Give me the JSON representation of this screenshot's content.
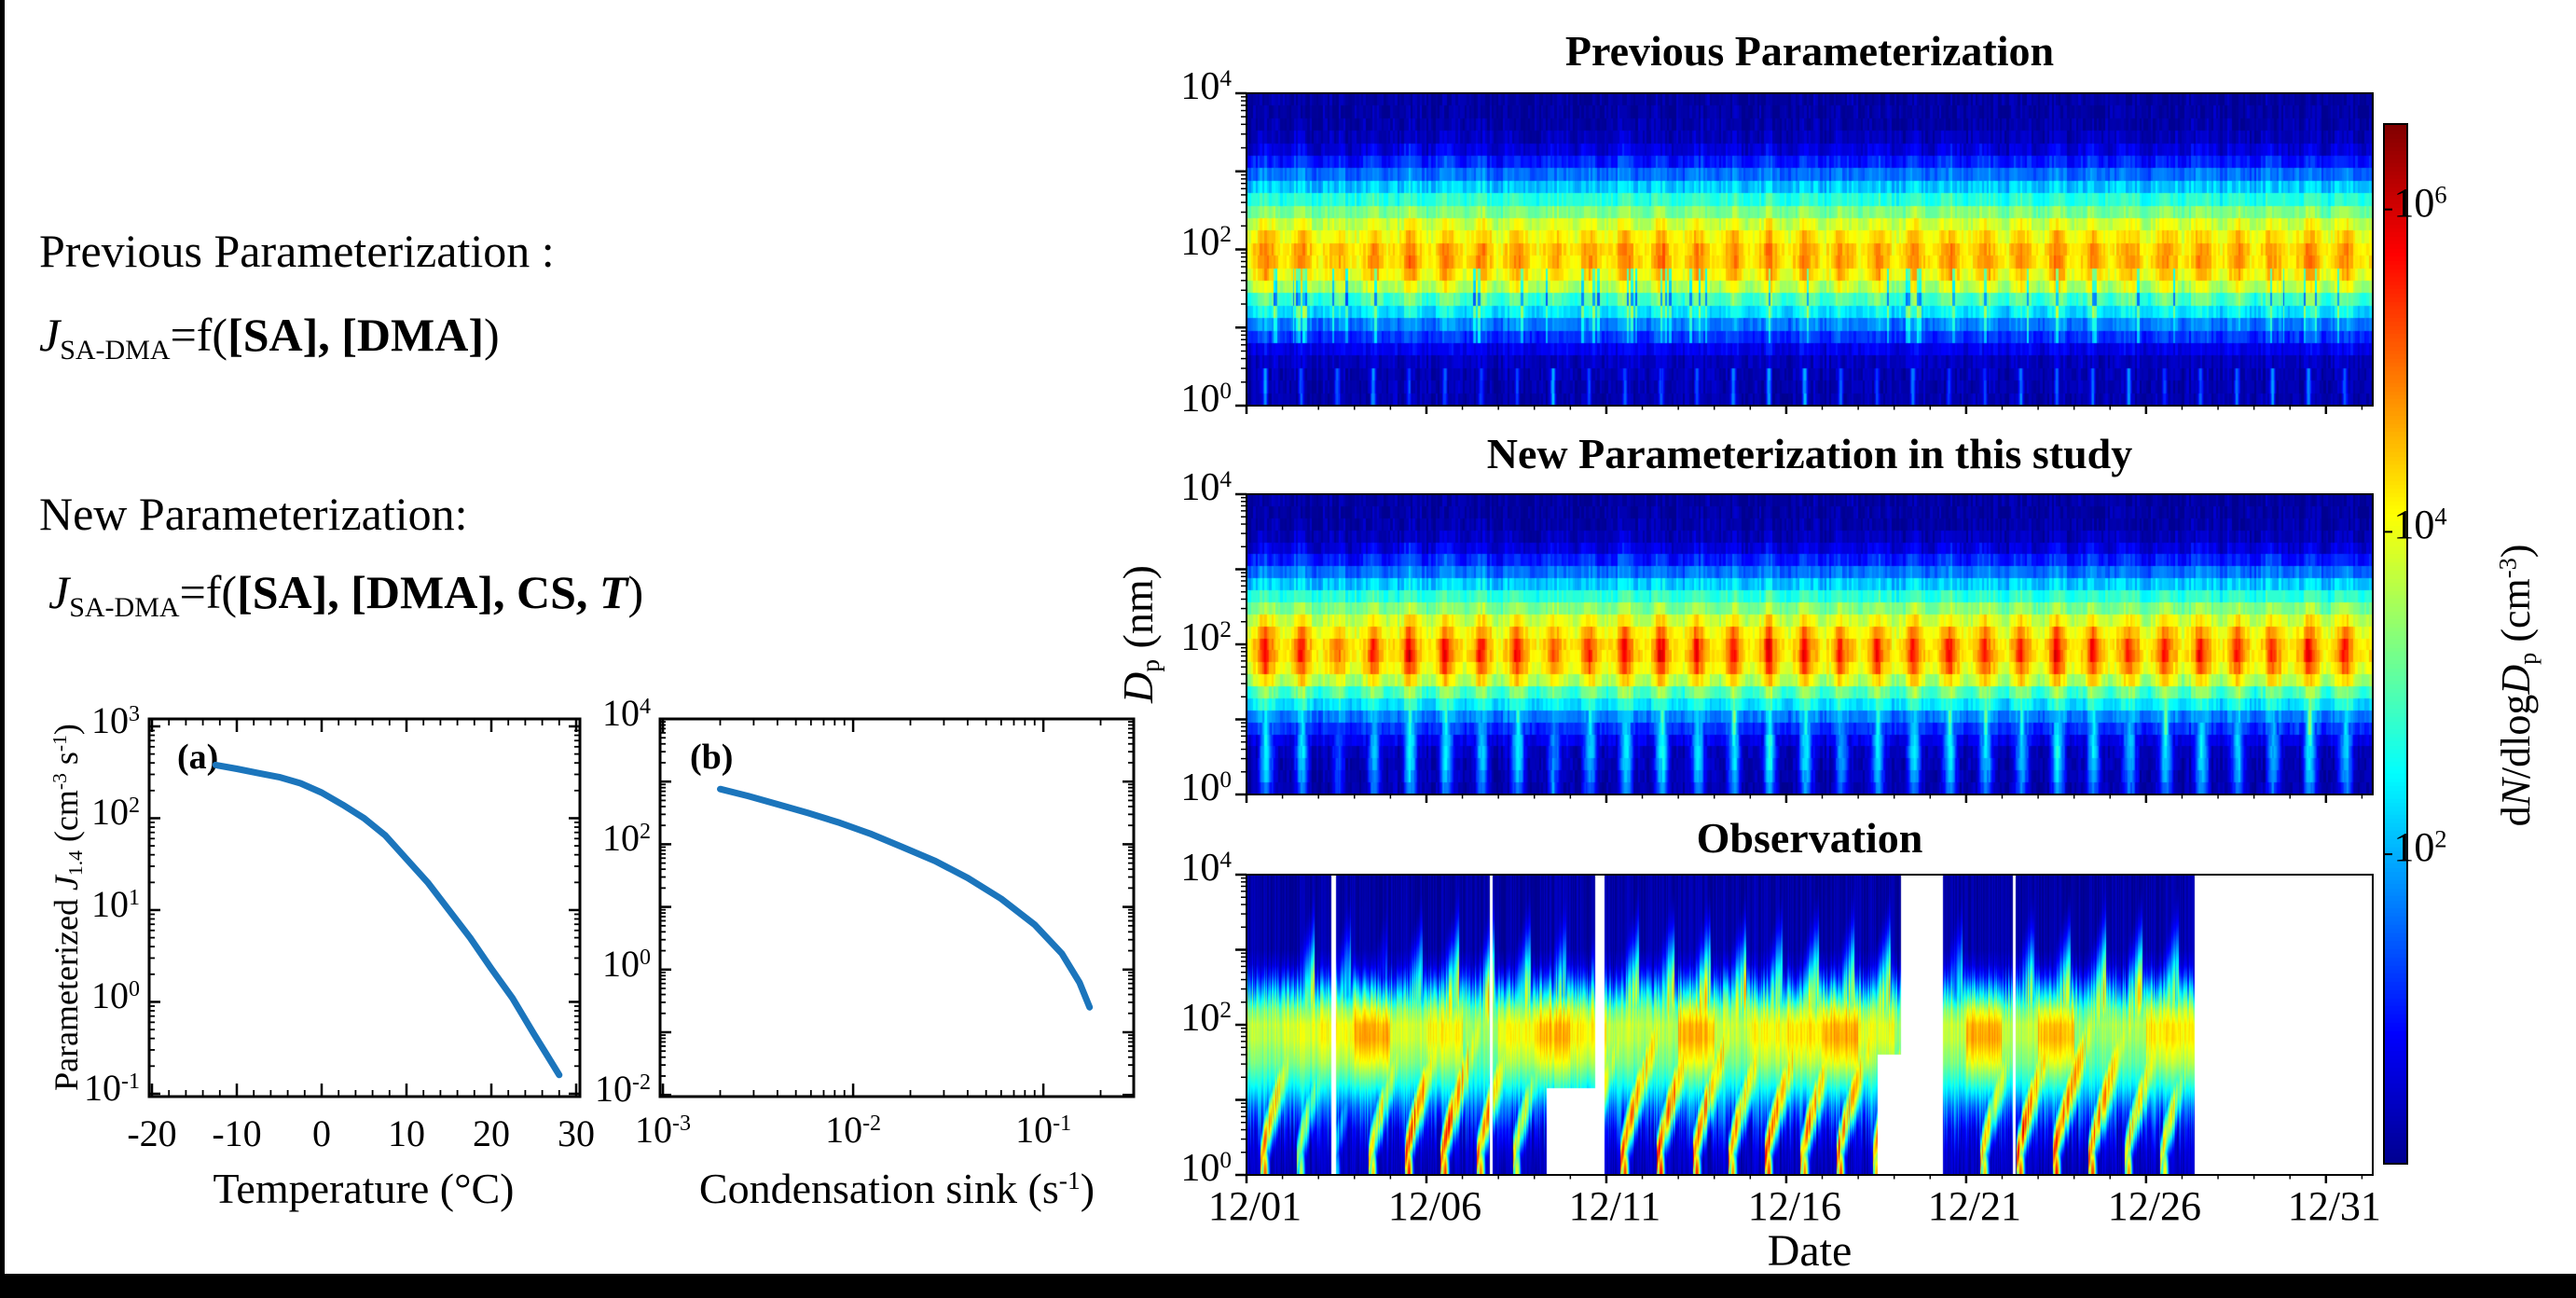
{
  "page": {
    "background": "#ffffff",
    "frame_color": "#000000"
  },
  "left_panel": {
    "previous": {
      "heading": "Previous Parameterization :",
      "equation": {
        "var": "J",
        "var_sub": "SA-DMA",
        "mid": "=f(",
        "bold_args": "[SA], [DMA]",
        "close": ")"
      }
    },
    "new": {
      "heading": "New Parameterization:",
      "equation": {
        "var": "J",
        "var_sub": "SA-DMA",
        "mid": "=f(",
        "bold_args": "[SA], [DMA], CS, ",
        "bold_italic_arg": "T",
        "close": ")"
      }
    }
  },
  "chart_data": {
    "line_plots": [
      {
        "id": "a",
        "panel_label": "(a)",
        "type": "line",
        "x_scale": "linear",
        "y_scale": "log",
        "xlabel": "Temperature (°C)",
        "ylabel_parts": {
          "pre": "Parameterized ",
          "italic": "J",
          "sub": "1.4",
          "unit_pre": " (cm",
          "sup1": "-3",
          "unit_mid": " s",
          "sup2": "-1",
          "unit_post": ")"
        },
        "xlim": [
          -20.33,
          30.44
        ],
        "ylim_log": [
          -1.031,
          3.081
        ],
        "x_major_ticks": [
          -20,
          -10,
          0,
          10,
          20,
          30
        ],
        "x_minor_step": 2,
        "y_tick_exponents_labeled": [
          -1,
          0,
          1,
          2,
          3
        ],
        "line_color": "#1b75bc",
        "x": [
          -12.5,
          -10,
          -7.5,
          -5,
          -2.5,
          0,
          2.5,
          5,
          7.5,
          10,
          12.5,
          15,
          17.5,
          20,
          22.5,
          25,
          26.5,
          28
        ],
        "y": [
          380,
          345,
          310,
          280,
          240,
          190,
          140,
          100,
          65,
          36,
          20,
          10,
          5,
          2.3,
          1.1,
          0.45,
          0.27,
          0.16
        ]
      },
      {
        "id": "b",
        "panel_label": "(b)",
        "type": "line",
        "x_scale": "log",
        "y_scale": "log",
        "xlabel_parts": {
          "pre": "Condensation sink (s",
          "sup": "-1",
          "post": ")"
        },
        "xlim_log": [
          -3.015,
          -0.525
        ],
        "ylim_log": [
          -2.027,
          4.0
        ],
        "x_tick_exponents_labeled": [
          -3,
          -2,
          -1
        ],
        "y_tick_exponents_labeled": [
          -2,
          0,
          2,
          4
        ],
        "line_color": "#1b75bc",
        "x": [
          0.002,
          0.0028,
          0.004,
          0.0058,
          0.0085,
          0.0125,
          0.018,
          0.027,
          0.04,
          0.06,
          0.09,
          0.125,
          0.155,
          0.175
        ],
        "y": [
          760,
          590,
          435,
          315,
          220,
          145,
          91,
          54,
          29,
          13.5,
          5.2,
          1.8,
          0.62,
          0.25
        ]
      }
    ],
    "heatmaps": [
      {
        "id": "prev",
        "title": "Previous Parameterization",
        "kind": "model_prev",
        "y_axis_log_nm": [
          0,
          4
        ],
        "day_event_strength": [
          0.85,
          0.8,
          0.45,
          0.7,
          0.9,
          0.85,
          0.75,
          0.9,
          0.6,
          0.8,
          0.85,
          0.9,
          0.85,
          0.8,
          0.9,
          0.85,
          0.7,
          0.85,
          0.8,
          0.9,
          0.8,
          0.75,
          0.9,
          0.85,
          0.8,
          0.85,
          0.9,
          0.8,
          0.75,
          0.85,
          0.8
        ],
        "size_profile": [
          [
            0,
            0.03
          ],
          [
            0.5,
            0.04
          ],
          [
            0.65,
            0.06
          ],
          [
            0.8,
            0.13
          ],
          [
            1.0,
            0.2
          ],
          [
            1.15,
            0.3
          ],
          [
            1.35,
            0.4
          ],
          [
            1.55,
            0.54
          ],
          [
            1.75,
            0.62
          ],
          [
            1.95,
            0.64
          ],
          [
            2.15,
            0.6
          ],
          [
            2.35,
            0.54
          ],
          [
            2.55,
            0.44
          ],
          [
            2.75,
            0.34
          ],
          [
            2.95,
            0.22
          ],
          [
            3.1,
            0.13
          ],
          [
            3.3,
            0.05
          ],
          [
            3.5,
            0.025
          ],
          [
            4,
            0.02
          ]
        ]
      },
      {
        "id": "new",
        "title": "New Parameterization in this study",
        "kind": "model_new",
        "y_axis_log_nm": [
          0,
          4
        ],
        "day_event_strength": [
          0.9,
          0.85,
          0.5,
          0.75,
          0.95,
          0.9,
          0.8,
          0.95,
          0.65,
          0.85,
          0.9,
          0.95,
          0.9,
          0.85,
          0.95,
          0.9,
          0.75,
          0.9,
          0.85,
          0.95,
          0.85,
          0.8,
          0.95,
          0.9,
          0.85,
          0.9,
          0.95,
          0.85,
          0.8,
          0.9,
          0.85
        ],
        "size_profile": [
          [
            0,
            0.03
          ],
          [
            0.5,
            0.04
          ],
          [
            0.65,
            0.06
          ],
          [
            0.8,
            0.13
          ],
          [
            1.0,
            0.2
          ],
          [
            1.15,
            0.3
          ],
          [
            1.35,
            0.4
          ],
          [
            1.55,
            0.54
          ],
          [
            1.75,
            0.62
          ],
          [
            1.95,
            0.64
          ],
          [
            2.15,
            0.6
          ],
          [
            2.35,
            0.54
          ],
          [
            2.55,
            0.44
          ],
          [
            2.75,
            0.34
          ],
          [
            2.95,
            0.22
          ],
          [
            3.1,
            0.13
          ],
          [
            3.3,
            0.05
          ],
          [
            3.5,
            0.025
          ],
          [
            4,
            0.02
          ]
        ]
      },
      {
        "id": "obs",
        "title": "Observation",
        "kind": "observation",
        "y_axis_log_nm": [
          0,
          4
        ],
        "day_event_strength": [
          0.85,
          0.6,
          0.35,
          0.75,
          0.95,
          0.9,
          0.85,
          0.7,
          0.5,
          0.8,
          0.9,
          0.95,
          0.9,
          0.8,
          0.9,
          0.85,
          0.9,
          0.8,
          0.6,
          0,
          0.75,
          0.9,
          0.95,
          0.9,
          0.8,
          0.7,
          0.4,
          0,
          0,
          0,
          0
        ],
        "missing_day_intervals": [
          [
            2.35,
            2.5
          ],
          [
            6.75,
            6.85
          ],
          [
            9.7,
            9.95
          ],
          [
            18.2,
            19.35
          ],
          [
            21.3,
            21.37
          ],
          [
            26.35,
            31.5
          ]
        ],
        "missing_bottom_notches": [
          {
            "days": [
              8.35,
              9.7
            ],
            "below_log_dp": 1.15
          },
          {
            "days": [
              17.55,
              18.2
            ],
            "below_log_dp": 1.6
          }
        ],
        "size_profile": [
          [
            0,
            0.05
          ],
          [
            0.3,
            0.07
          ],
          [
            0.6,
            0.12
          ],
          [
            0.9,
            0.24
          ],
          [
            1.2,
            0.4
          ],
          [
            1.5,
            0.54
          ],
          [
            1.8,
            0.62
          ],
          [
            2.0,
            0.62
          ],
          [
            2.2,
            0.53
          ],
          [
            2.35,
            0.4
          ],
          [
            2.5,
            0.27
          ],
          [
            2.65,
            0.15
          ],
          [
            2.8,
            0.07
          ],
          [
            3.0,
            0.03
          ],
          [
            4,
            0.02
          ]
        ]
      }
    ],
    "heatmap_axes": {
      "ylabel_parts": {
        "italic": "D",
        "sub": "p",
        "rest": " (nm)"
      },
      "y_tick_exponents": [
        0,
        2,
        4
      ],
      "xlabel": "Date",
      "x_tick_labels": [
        "12/01",
        "12/06",
        "12/11",
        "12/16",
        "12/21",
        "12/26",
        "12/31"
      ],
      "x_tick_days": [
        0,
        5,
        10,
        15,
        20,
        25,
        30
      ],
      "days_span": 31.3
    },
    "colorbar": {
      "label_parts": {
        "p1": "d",
        "i1": "N",
        "p2": "/dlog",
        "i2": "D",
        "sub": "p",
        "p3": " (cm",
        "sup": "-3",
        "p4": ")"
      },
      "tick_exponents": [
        2,
        4,
        6
      ],
      "log_range": [
        0.08,
        6.53
      ],
      "colormap": "jet",
      "colormap_stops": [
        [
          0,
          "#000090"
        ],
        [
          0.125,
          "#0000ff"
        ],
        [
          0.375,
          "#00ffff"
        ],
        [
          0.625,
          "#ffff00"
        ],
        [
          0.875,
          "#ff0000"
        ],
        [
          1,
          "#800000"
        ]
      ]
    }
  }
}
